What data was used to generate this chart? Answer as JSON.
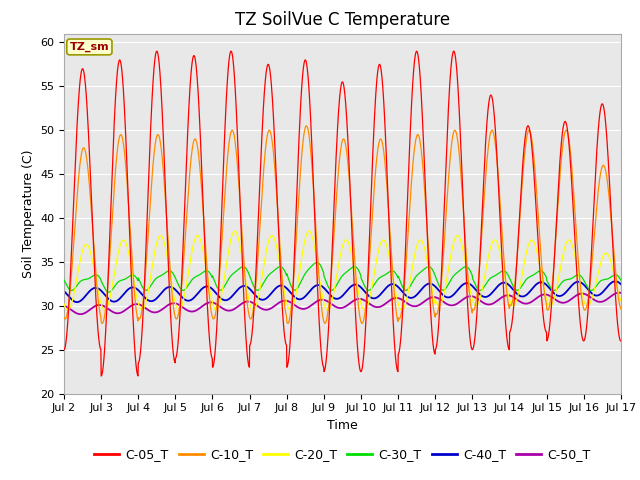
{
  "title": "TZ SoilVue C Temperature",
  "ylabel": "Soil Temperature (C)",
  "xlabel": "Time",
  "annotation": "TZ_sm",
  "ylim": [
    20,
    61
  ],
  "yticks": [
    20,
    25,
    30,
    35,
    40,
    45,
    50,
    55,
    60
  ],
  "xtick_labels": [
    "Jul 2",
    "Jul 3",
    "Jul 4",
    "Jul 5",
    "Jul 6",
    "Jul 7",
    "Jul 8",
    "Jul 9",
    "Jul 10",
    "Jul 11",
    "Jul 12",
    "Jul 13",
    "Jul 14",
    "Jul 15",
    "Jul 16",
    "Jul 17"
  ],
  "legend_labels": [
    "C-05_T",
    "C-10_T",
    "C-20_T",
    "C-30_T",
    "C-40_T",
    "C-50_T"
  ],
  "line_colors": [
    "#ff0000",
    "#ff8c00",
    "#ffff00",
    "#00dd00",
    "#0000cc",
    "#aa00aa"
  ],
  "background_color": "#e8e8e8",
  "title_fontsize": 12,
  "axis_label_fontsize": 9,
  "tick_fontsize": 8,
  "legend_fontsize": 9,
  "n_days": 15,
  "samples_per_day": 144
}
